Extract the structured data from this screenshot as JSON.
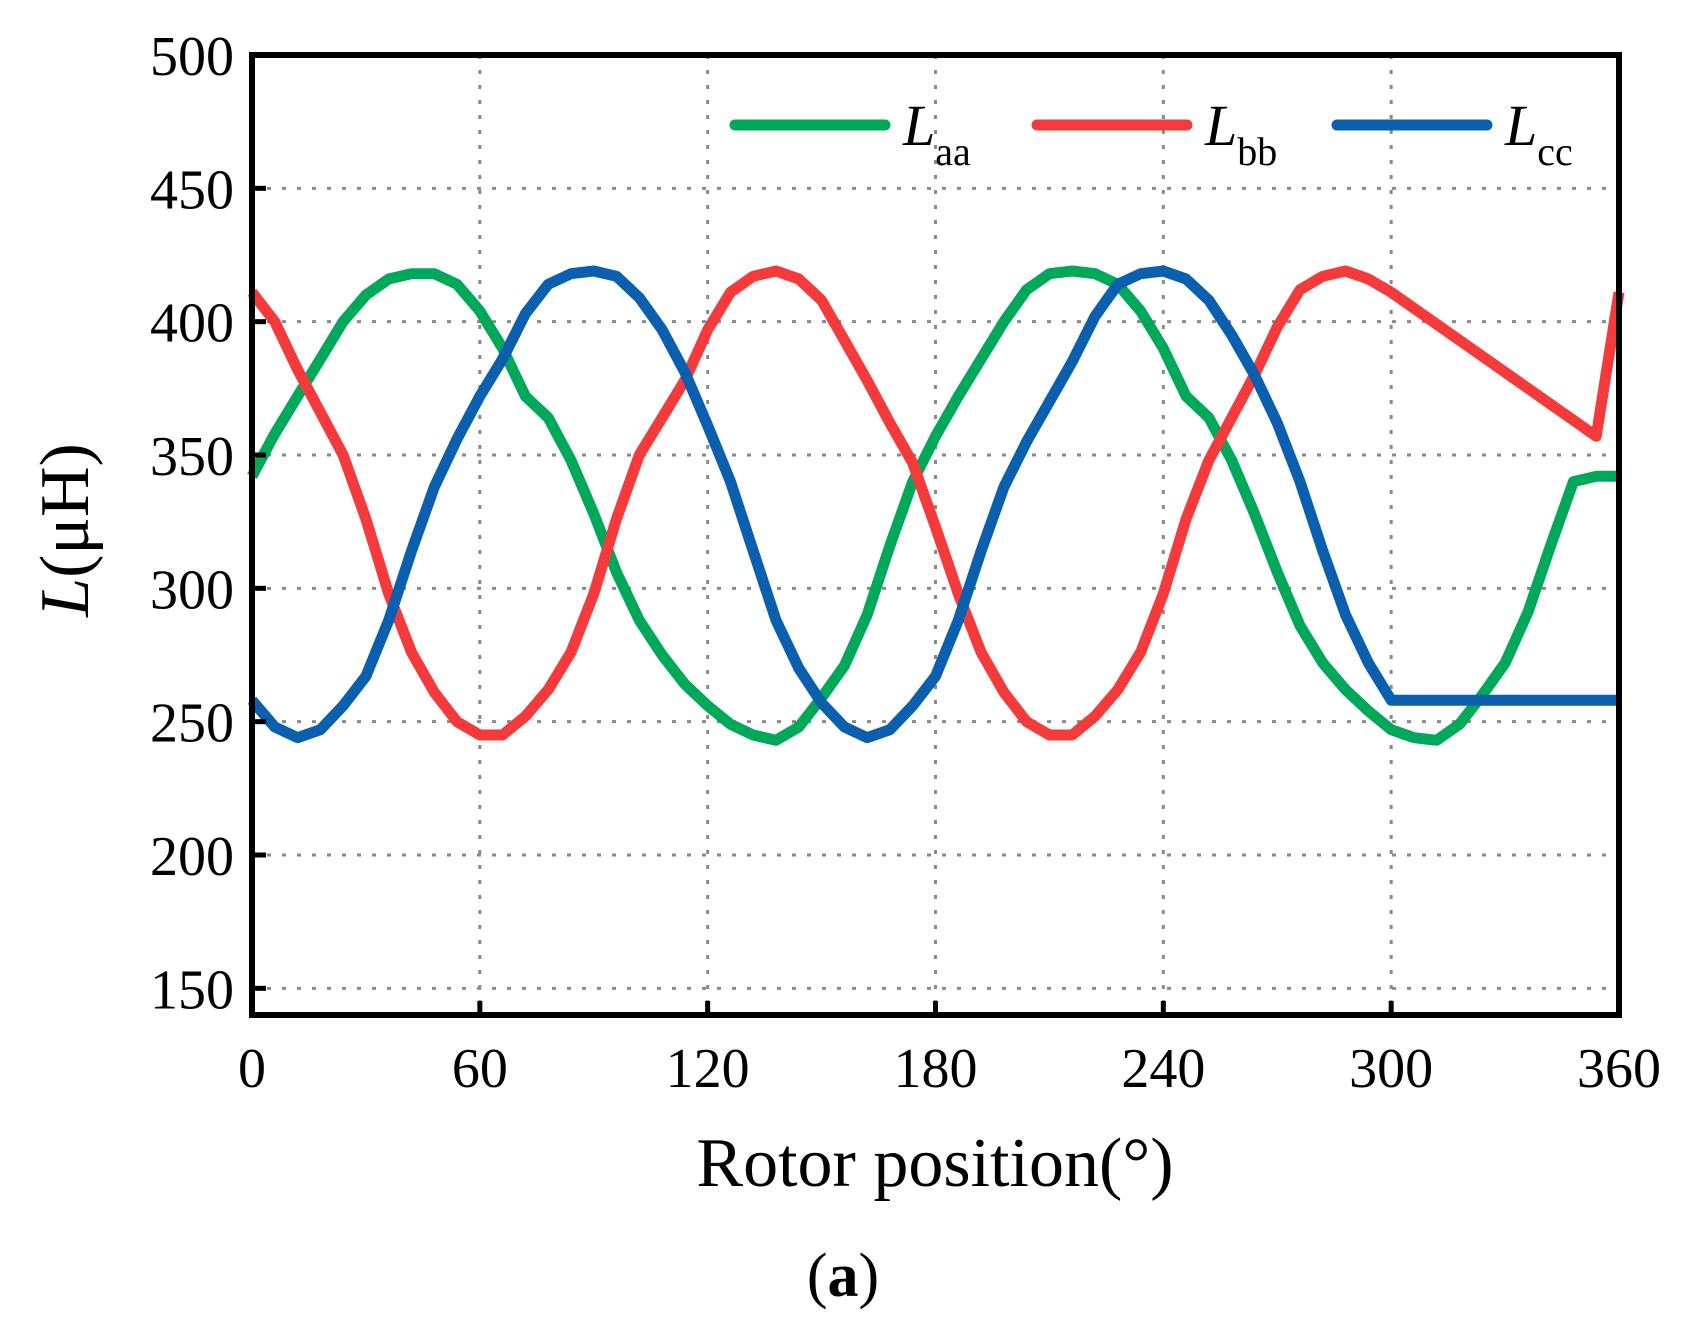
{
  "chart_data": {
    "type": "line",
    "title": "",
    "xlabel": "Rotor position(°)",
    "ylabel_main": "L",
    "ylabel_unit": "(μH)",
    "xlim": [
      0,
      360
    ],
    "ylim": [
      140,
      500
    ],
    "xticks": [
      0,
      60,
      120,
      180,
      240,
      300,
      360
    ],
    "yticks": [
      150,
      200,
      250,
      300,
      350,
      400,
      450,
      500
    ],
    "grid": true,
    "legend_position": "top-right",
    "panel_label": "a",
    "panel_label_open": "(",
    "panel_label_close": ")",
    "series": [
      {
        "name": "Laa",
        "label_main": "L",
        "label_sub": "aa",
        "color": "#00A85A",
        "x": [
          0,
          6,
          12,
          18,
          24,
          30,
          36,
          42,
          48,
          54,
          60,
          66,
          72,
          78,
          84,
          90,
          96,
          102,
          108,
          114,
          120,
          126,
          132,
          138,
          144,
          150,
          156,
          162,
          168,
          174,
          180,
          186,
          192,
          198,
          204,
          210,
          216,
          222,
          228,
          234,
          240,
          246,
          252,
          258,
          264,
          270,
          276,
          282,
          288,
          294,
          300,
          306,
          312,
          318,
          324,
          330,
          336,
          342,
          348,
          354,
          360
        ],
        "values": [
          342,
          358,
          372,
          386,
          400,
          410,
          416,
          418,
          418,
          414,
          404,
          390,
          372,
          364,
          348,
          328,
          306,
          288,
          275,
          264,
          256,
          249,
          245,
          243,
          248,
          259,
          271,
          290,
          316,
          340,
          357,
          372,
          386,
          400,
          412,
          418,
          419,
          418,
          414,
          404,
          390,
          372,
          364,
          348,
          328,
          306,
          286,
          272,
          262,
          254,
          247,
          244,
          243,
          249,
          260,
          272,
          291,
          316,
          340,
          342,
          342
        ]
      },
      {
        "name": "Lbb",
        "label_main": "L",
        "label_sub": "bb",
        "color": "#F53A3C",
        "x": [
          0,
          6,
          12,
          18,
          24,
          30,
          36,
          42,
          48,
          54,
          60,
          66,
          72,
          78,
          84,
          90,
          96,
          102,
          108,
          114,
          120,
          126,
          132,
          138,
          144,
          150,
          156,
          162,
          168,
          174,
          180,
          186,
          192,
          198,
          204,
          210,
          216,
          222,
          228,
          234,
          240,
          246,
          252,
          258,
          264,
          270,
          276,
          282,
          288,
          294,
          300,
          306,
          312,
          318,
          324,
          330,
          336,
          342,
          348,
          354,
          360
        ],
        "values": [
          411,
          400,
          382,
          366,
          350,
          326,
          298,
          276,
          261,
          250,
          245,
          245,
          252,
          262,
          276,
          298,
          326,
          350,
          364,
          378,
          397,
          411,
          417,
          419,
          416,
          408,
          393,
          378,
          362,
          347,
          323,
          298,
          276,
          261,
          250,
          245,
          245,
          252,
          262,
          276,
          298,
          326,
          348,
          364,
          380,
          398,
          412,
          417,
          419,
          416,
          411,
          405,
          399,
          393,
          387,
          381,
          375,
          369,
          363,
          357,
          411
        ]
      },
      {
        "name": "Lcc",
        "label_main": "L",
        "label_sub": "cc",
        "color": "#0A5FAE",
        "x": [
          0,
          6,
          12,
          18,
          24,
          30,
          36,
          42,
          48,
          54,
          60,
          66,
          72,
          78,
          84,
          90,
          96,
          102,
          108,
          114,
          120,
          126,
          132,
          138,
          144,
          150,
          156,
          162,
          168,
          174,
          180,
          186,
          192,
          198,
          204,
          210,
          216,
          222,
          228,
          234,
          240,
          246,
          252,
          258,
          264,
          270,
          276,
          282,
          288,
          294,
          300,
          306,
          312,
          318,
          324,
          330,
          336,
          342,
          348,
          354,
          360
        ],
        "values": [
          258,
          248,
          244,
          247,
          256,
          267,
          288,
          314,
          338,
          356,
          372,
          386,
          403,
          414,
          418,
          419,
          417,
          409,
          397,
          381,
          361,
          340,
          314,
          288,
          270,
          257,
          248,
          244,
          247,
          256,
          267,
          288,
          314,
          338,
          355,
          370,
          385,
          402,
          414,
          418,
          419,
          416,
          408,
          395,
          380,
          362,
          340,
          314,
          290,
          272,
          258,
          258,
          258,
          258,
          258,
          258,
          258,
          258,
          258,
          258,
          258
        ]
      }
    ]
  }
}
